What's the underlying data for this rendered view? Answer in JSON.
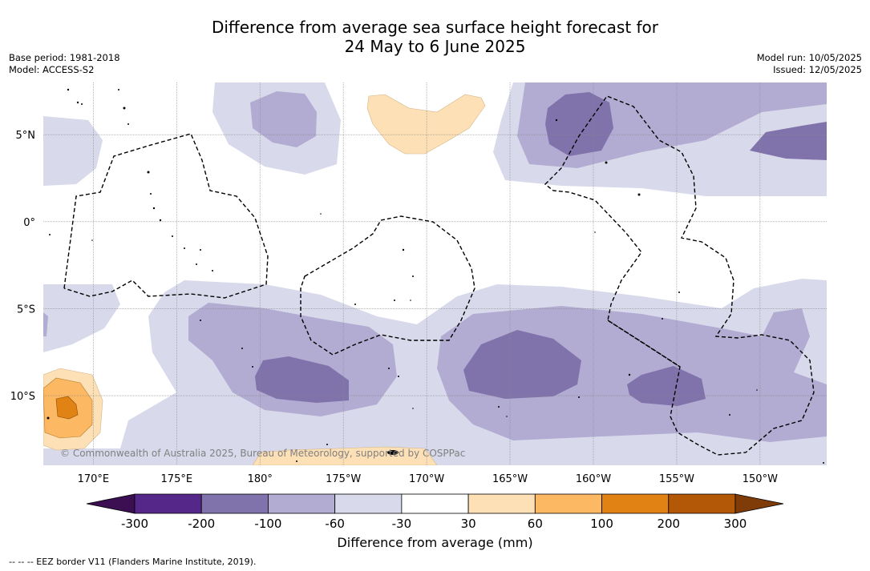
{
  "title": {
    "line1": "Difference from average sea surface height forecast for",
    "line2": "24 May to 6 June 2025"
  },
  "info_left": {
    "base_period": "Base period: 1981-2018",
    "model": "Model: ACCESS-S2"
  },
  "info_right": {
    "model_run": "Model run: 10/05/2025",
    "issued": "Issued: 12/05/2025"
  },
  "map": {
    "lon_range": [
      167,
      214
    ],
    "lat_range": [
      -14,
      8
    ],
    "lon_ticks": [
      {
        "value": 170,
        "label": "170°E"
      },
      {
        "value": 175,
        "label": "175°E"
      },
      {
        "value": 180,
        "label": "180°"
      },
      {
        "value": 185,
        "label": "175°W"
      },
      {
        "value": 190,
        "label": "170°W"
      },
      {
        "value": 195,
        "label": "165°W"
      },
      {
        "value": 200,
        "label": "160°W"
      },
      {
        "value": 205,
        "label": "155°W"
      },
      {
        "value": 210,
        "label": "150°W"
      }
    ],
    "lat_ticks": [
      {
        "value": 5,
        "label": "5°N"
      },
      {
        "value": 0,
        "label": "0°"
      },
      {
        "value": -5,
        "label": "5°S"
      },
      {
        "value": -10,
        "label": "10°S"
      }
    ],
    "copyright": "© Commonwealth of Australia 2025, Bureau of Meteorology, supported by COSPPac"
  },
  "colorbar": {
    "ticks": [
      "-300",
      "-200",
      "-100",
      "-60",
      "-30",
      "30",
      "60",
      "100",
      "200",
      "300"
    ],
    "colors": [
      "#3b0f52",
      "#542788",
      "#8073ac",
      "#b2abd2",
      "#d8daeb",
      "#ffffff",
      "#fee0b6",
      "#fdb863",
      "#e08214",
      "#b35806",
      "#7f3b08"
    ],
    "label": "Difference from average (mm)"
  },
  "footnote": "--  --  -- EEZ border V11 (Flanders Marine Institute, 2019)."
}
